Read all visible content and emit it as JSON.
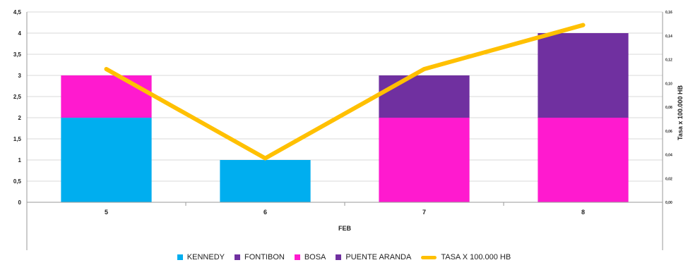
{
  "chart_data": {
    "type": "bar",
    "stacked": true,
    "categories": [
      "5",
      "6",
      "7",
      "8"
    ],
    "xlabel": "FEB",
    "ylabel": "",
    "y2label": "Tasa x 100.000 HB",
    "ylim": [
      0,
      4.5
    ],
    "y2lim": [
      0,
      0.16
    ],
    "yticks": [
      "0",
      "0,5",
      "1",
      "1,5",
      "2",
      "2,5",
      "3",
      "3,5",
      "4",
      "4,5"
    ],
    "y2ticks": [
      "0,00",
      "0,02",
      "0,04",
      "0,06",
      "0,08",
      "0,10",
      "0,12",
      "0,14",
      "0,16"
    ],
    "grid": true,
    "legend_position": "bottom",
    "series": [
      {
        "name": "KENNEDY",
        "color": "#00AEEF",
        "values": [
          2,
          1,
          0,
          0
        ]
      },
      {
        "name": "FONTIBON",
        "color": "#7030A0",
        "values": [
          0,
          0,
          0,
          0
        ]
      },
      {
        "name": "BOSA",
        "color": "#FF1ACF",
        "values": [
          1,
          0,
          2,
          2
        ]
      },
      {
        "name": "PUENTE ARANDA",
        "color": "#7030A0",
        "values": [
          0,
          0,
          1,
          2
        ]
      }
    ],
    "line_series": {
      "name": "TASA X 100.000 HB",
      "color": "#FFC000",
      "axis": "right",
      "values": [
        0.112,
        0.037,
        0.112,
        0.149
      ]
    }
  }
}
